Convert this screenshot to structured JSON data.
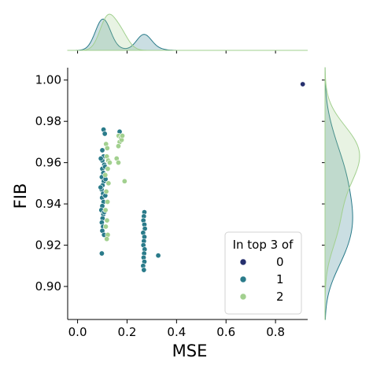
{
  "chart_data": {
    "type": "scatter",
    "xlabel": "MSE",
    "ylabel": "FIB",
    "xlim": [
      -0.04,
      0.93
    ],
    "ylim": [
      0.884,
      1.006
    ],
    "x_ticks": [
      0.0,
      0.2,
      0.4,
      0.6,
      0.8
    ],
    "x_tick_labels": [
      "0.0",
      "0.2",
      "0.4",
      "0.6",
      "0.8"
    ],
    "y_ticks": [
      0.9,
      0.92,
      0.94,
      0.96,
      0.98,
      1.0
    ],
    "y_tick_labels": [
      "0.90",
      "0.92",
      "0.94",
      "0.96",
      "0.98",
      "1.00"
    ],
    "grid": false,
    "legend": {
      "title": "In top 3 of",
      "placement": "lower-right",
      "entries": [
        {
          "label": "0",
          "color": "#26306e"
        },
        {
          "label": "1",
          "color": "#2a7b8a"
        },
        {
          "label": "2",
          "color": "#a2d08f"
        }
      ]
    },
    "marginals": {
      "top": "kde of MSE per group",
      "right": "kde of FIB per group"
    },
    "series": [
      {
        "name": "0",
        "color": "#26306e",
        "points": [
          [
            0.91,
            0.998
          ]
        ]
      },
      {
        "name": "1",
        "color": "#2a7b8a",
        "points": [
          [
            0.105,
            0.976
          ],
          [
            0.11,
            0.974
          ],
          [
            0.1,
            0.966
          ],
          [
            0.105,
            0.963
          ],
          [
            0.1,
            0.961
          ],
          [
            0.108,
            0.959
          ],
          [
            0.1,
            0.957
          ],
          [
            0.104,
            0.955
          ],
          [
            0.098,
            0.953
          ],
          [
            0.106,
            0.951
          ],
          [
            0.101,
            0.949
          ],
          [
            0.097,
            0.947
          ],
          [
            0.103,
            0.945
          ],
          [
            0.099,
            0.943
          ],
          [
            0.105,
            0.941
          ],
          [
            0.1,
            0.939
          ],
          [
            0.096,
            0.937
          ],
          [
            0.104,
            0.935
          ],
          [
            0.101,
            0.933
          ],
          [
            0.098,
            0.931
          ],
          [
            0.103,
            0.929
          ],
          [
            0.1,
            0.927
          ],
          [
            0.107,
            0.925
          ],
          [
            0.098,
            0.916
          ],
          [
            0.111,
            0.958
          ],
          [
            0.094,
            0.962
          ],
          [
            0.112,
            0.944
          ],
          [
            0.093,
            0.948
          ],
          [
            0.108,
            0.936
          ],
          [
            0.113,
            0.952
          ],
          [
            0.27,
            0.936
          ],
          [
            0.268,
            0.934
          ],
          [
            0.266,
            0.932
          ],
          [
            0.27,
            0.93
          ],
          [
            0.272,
            0.928
          ],
          [
            0.265,
            0.926
          ],
          [
            0.27,
            0.924
          ],
          [
            0.268,
            0.922
          ],
          [
            0.266,
            0.92
          ],
          [
            0.271,
            0.918
          ],
          [
            0.269,
            0.916
          ],
          [
            0.267,
            0.914
          ],
          [
            0.27,
            0.912
          ],
          [
            0.265,
            0.91
          ],
          [
            0.268,
            0.908
          ],
          [
            0.326,
            0.915
          ],
          [
            0.17,
            0.975
          ]
        ]
      },
      {
        "name": "2",
        "color": "#a2d08f",
        "points": [
          [
            0.115,
            0.969
          ],
          [
            0.12,
            0.967
          ],
          [
            0.118,
            0.963
          ],
          [
            0.124,
            0.961
          ],
          [
            0.122,
            0.957
          ],
          [
            0.112,
            0.954
          ],
          [
            0.125,
            0.95
          ],
          [
            0.116,
            0.946
          ],
          [
            0.121,
            0.941
          ],
          [
            0.113,
            0.937
          ],
          [
            0.119,
            0.932
          ],
          [
            0.114,
            0.929
          ],
          [
            0.122,
            0.925
          ],
          [
            0.118,
            0.923
          ],
          [
            0.166,
            0.973
          ],
          [
            0.175,
            0.972
          ],
          [
            0.17,
            0.97
          ],
          [
            0.178,
            0.971
          ],
          [
            0.165,
            0.968
          ],
          [
            0.181,
            0.973
          ],
          [
            0.158,
            0.962
          ],
          [
            0.165,
            0.96
          ],
          [
            0.19,
            0.951
          ],
          [
            0.13,
            0.96
          ]
        ]
      }
    ]
  }
}
